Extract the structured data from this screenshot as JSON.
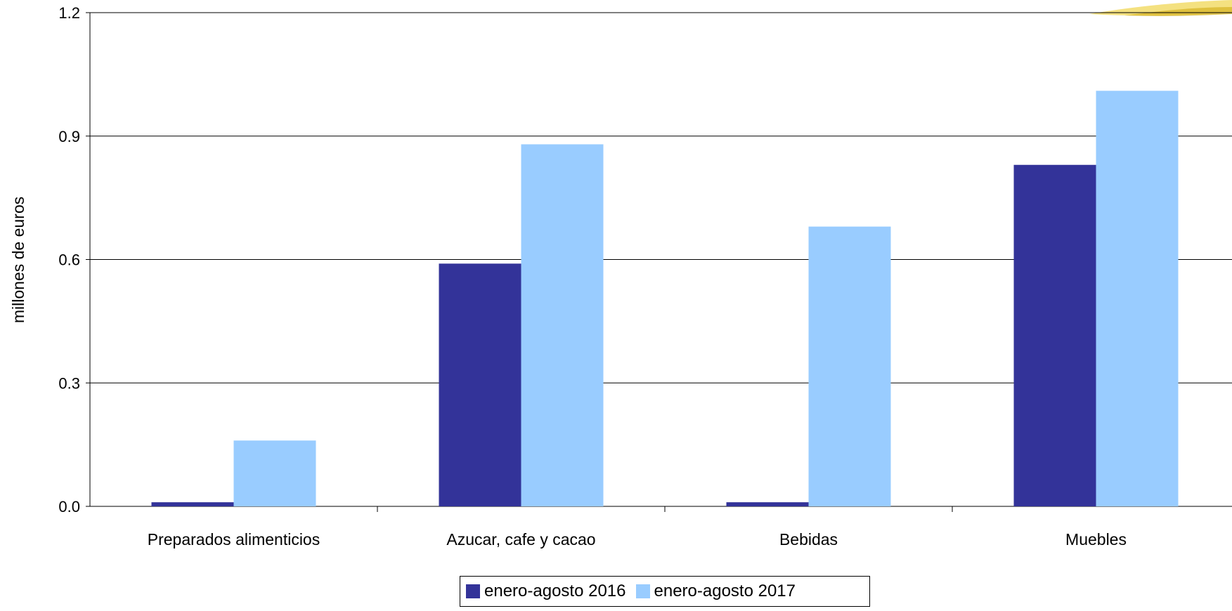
{
  "chart_data": {
    "type": "bar",
    "title": "",
    "xlabel": "",
    "ylabel": "millones de euros",
    "ylim": [
      0,
      1.2
    ],
    "yticks": [
      "0.0",
      "0.3",
      "0.6",
      "0.9",
      "1.2"
    ],
    "grid": true,
    "legend_position": "bottom",
    "categories": [
      "Preparados alimenticios",
      "Azucar, cafe y cacao",
      "Bebidas",
      "Muebles"
    ],
    "series": [
      {
        "name": "enero-agosto 2016",
        "color": "#333399",
        "values": [
          0.01,
          0.59,
          0.01,
          0.83
        ]
      },
      {
        "name": "enero-agosto 2017",
        "color": "#99CCFF",
        "values": [
          0.16,
          0.88,
          0.68,
          1.01
        ]
      }
    ]
  }
}
